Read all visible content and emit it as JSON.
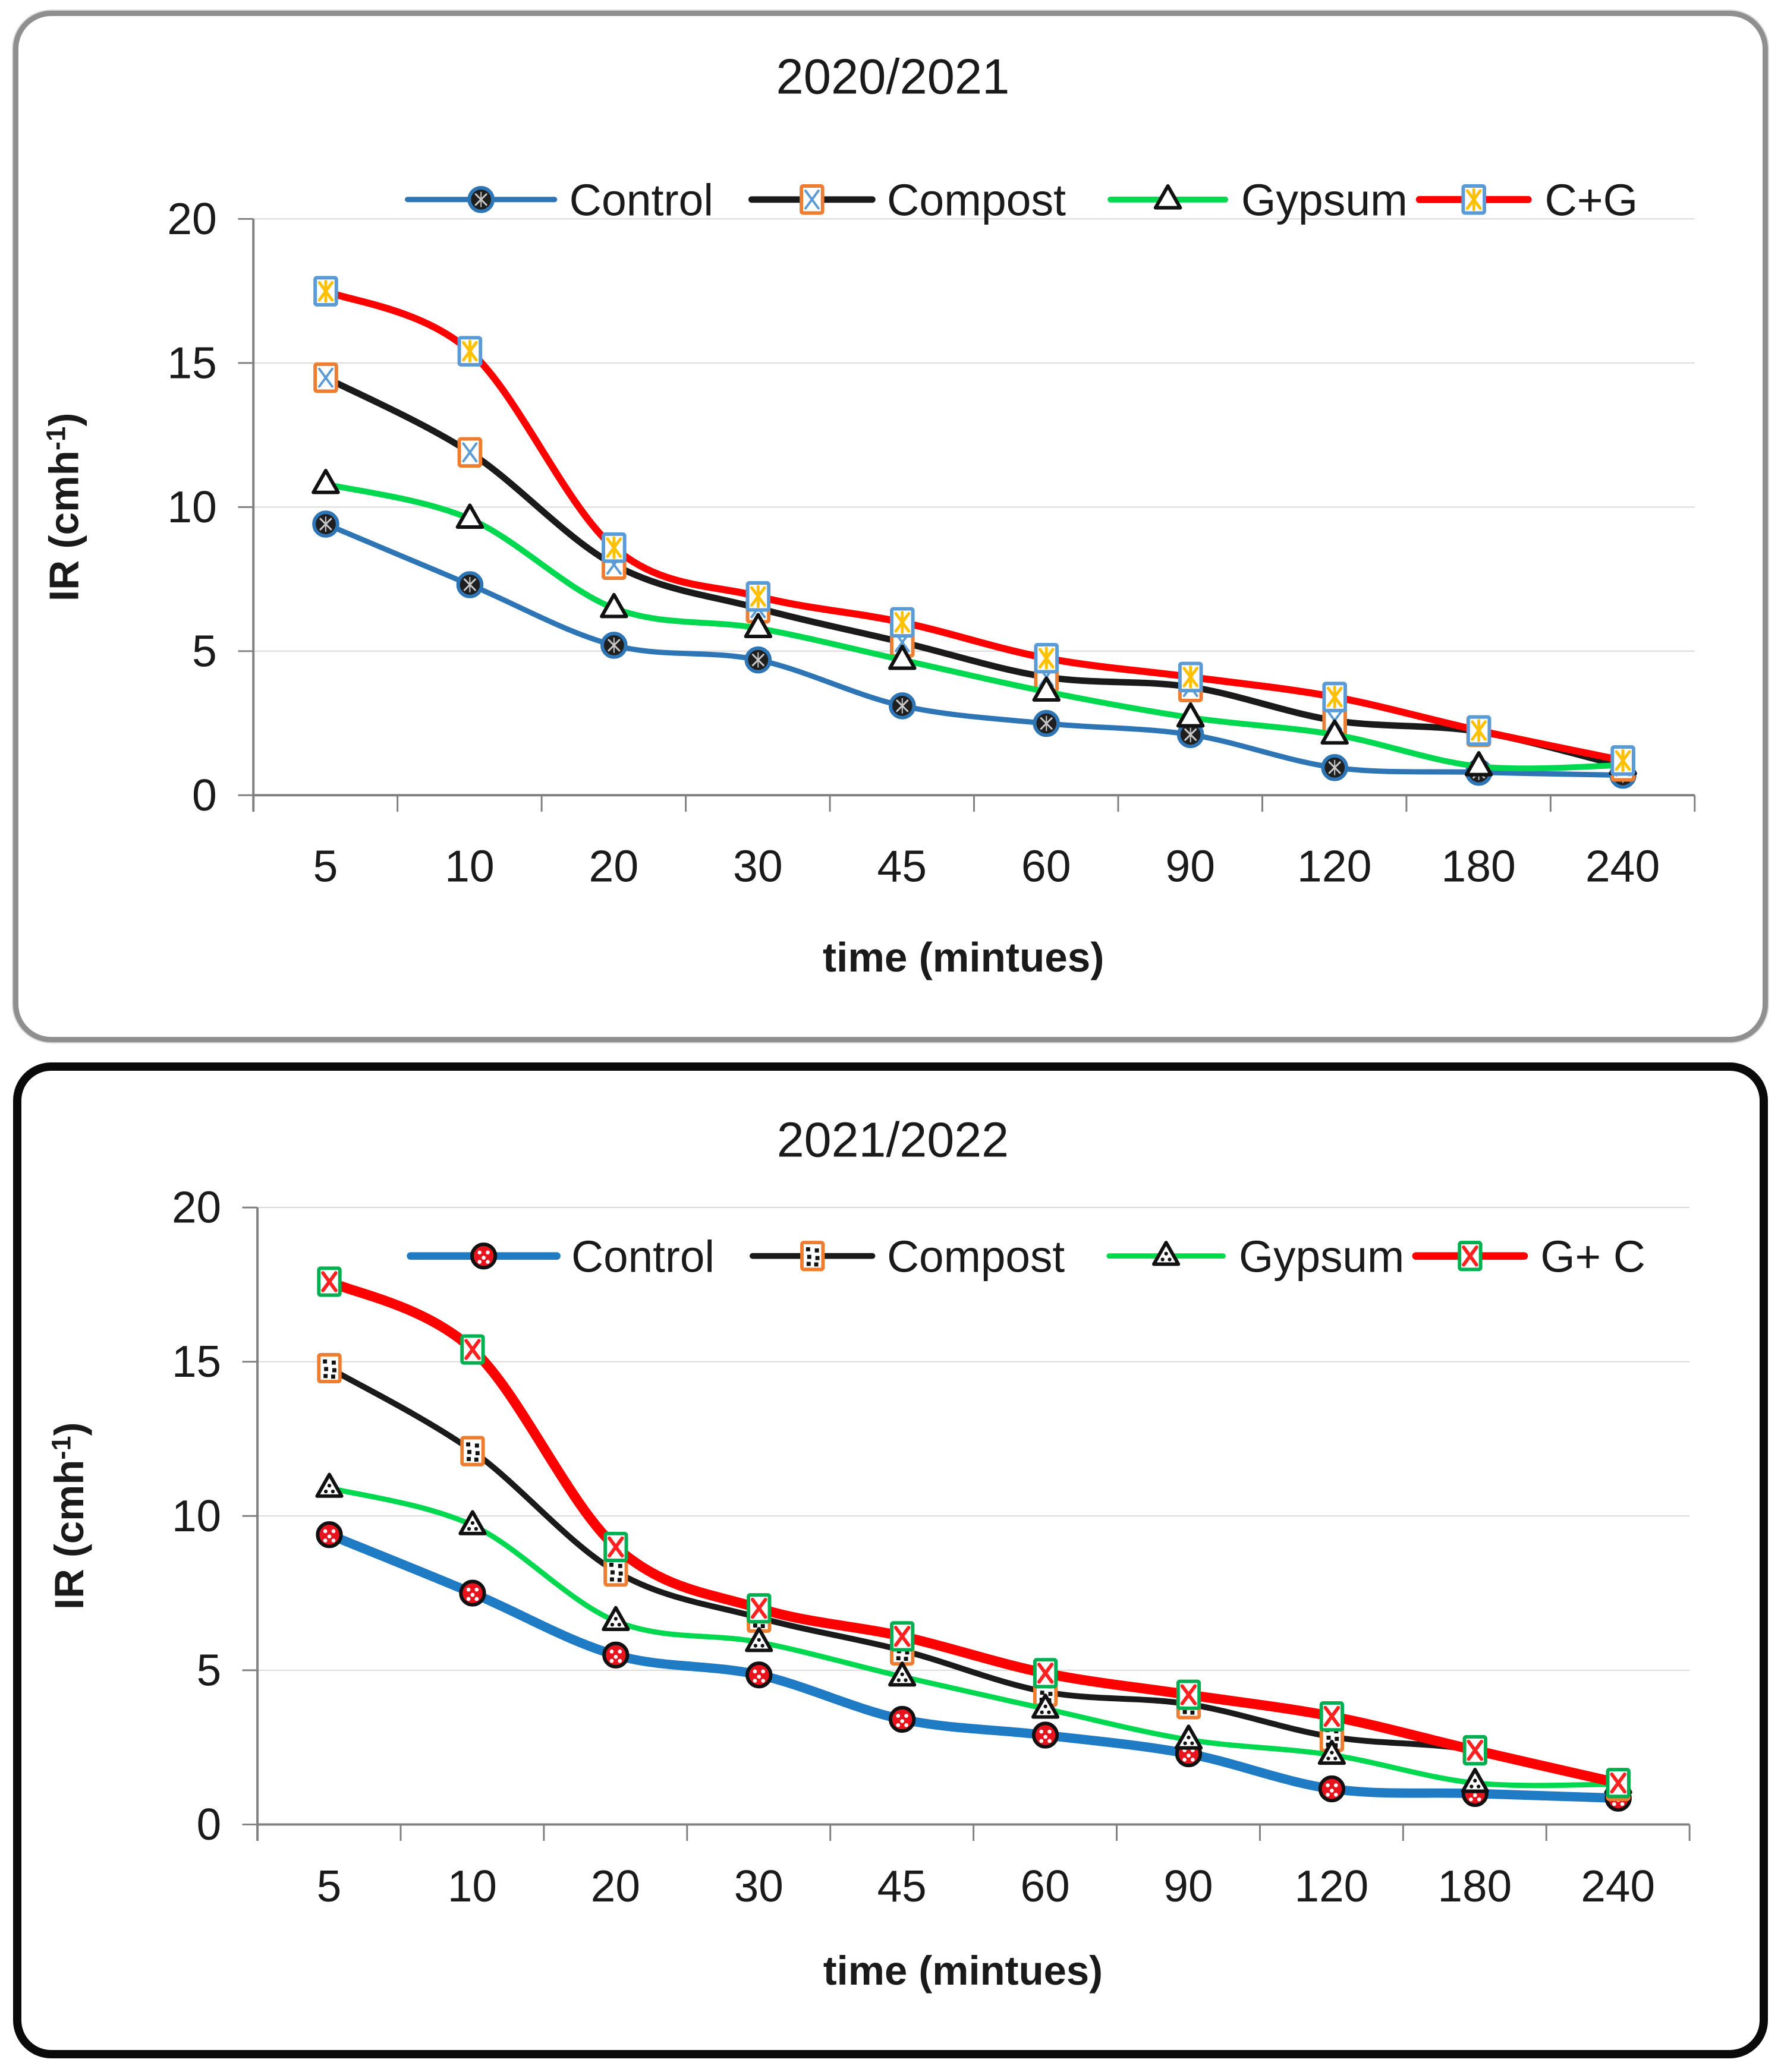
{
  "figure": {
    "background": "#ffffff",
    "top_panel_border_color": "#8f8f8f",
    "bottom_panel_border_color": "#0a0a0a"
  },
  "chart_data": [
    {
      "type": "line",
      "title": "2020/2021",
      "xlabel": "time (mintues)",
      "ylabel": {
        "main": "IR (cmh",
        "sup": "-1",
        "end": ")"
      },
      "ylim": [
        0,
        20
      ],
      "yticks": [
        0,
        5,
        10,
        15,
        20
      ],
      "categories": [
        "5",
        "10",
        "20",
        "30",
        "45",
        "60",
        "90",
        "120",
        "180",
        "240"
      ],
      "grid": true,
      "legend_position": "top-inside-horizontal",
      "axis_color": "#808080",
      "gridline_color": "#d9d9d9",
      "series": [
        {
          "name": "Control",
          "color": "#2E75B6",
          "line_width": 9,
          "marker": {
            "shape": "circle-hatch",
            "stroke": "#2E75B6",
            "fill": "#1f1f1f",
            "inner": "#c8c8c8"
          },
          "values": [
            9.4,
            7.3,
            5.2,
            4.7,
            3.1,
            2.5,
            2.1,
            0.95,
            0.8,
            0.7
          ]
        },
        {
          "name": "Compost",
          "color": "#1a1a1a",
          "line_width": 11,
          "marker": {
            "shape": "square-x",
            "stroke": "#ED7D31",
            "fill": "#ffffff",
            "inner": "#5B9BD5"
          },
          "values": [
            14.5,
            11.9,
            8.0,
            6.5,
            5.3,
            4.1,
            3.75,
            2.6,
            2.2,
            1.0
          ]
        },
        {
          "name": "Gypsum",
          "color": "#00D94F",
          "line_width": 10,
          "marker": {
            "shape": "triangle",
            "stroke": "#111111",
            "fill": "#ffffff",
            "inner": "#111111"
          },
          "values": [
            10.8,
            9.6,
            6.5,
            5.8,
            4.7,
            3.6,
            2.7,
            2.1,
            1.0,
            1.05
          ]
        },
        {
          "name": "C+G",
          "color": "#FF0000",
          "line_width": 12,
          "marker": {
            "shape": "square-star",
            "stroke": "#5B9BD5",
            "fill": "#ffffff",
            "inner": "#FFC000"
          },
          "values": [
            17.5,
            15.4,
            8.6,
            6.9,
            6.0,
            4.75,
            4.1,
            3.4,
            2.25,
            1.2
          ]
        }
      ]
    },
    {
      "type": "line",
      "title": "2021/2022",
      "xlabel": "time (mintues)",
      "ylabel": {
        "main": "IR (cmh",
        "sup": "-1",
        "end": ")"
      },
      "ylim": [
        0,
        20
      ],
      "yticks": [
        0,
        5,
        10,
        15,
        20
      ],
      "categories": [
        "5",
        "10",
        "20",
        "30",
        "45",
        "60",
        "90",
        "120",
        "180",
        "240"
      ],
      "grid": true,
      "legend_position": "top-inside-horizontal",
      "axis_color": "#808080",
      "gridline_color": "#d9d9d9",
      "series": [
        {
          "name": "Control",
          "color": "#1F7BC4",
          "line_width": 16,
          "marker": {
            "shape": "circle-dots",
            "stroke": "#111111",
            "fill": "#E8131D",
            "inner": "#ffffff"
          },
          "values": [
            9.4,
            7.5,
            5.5,
            4.85,
            3.4,
            2.9,
            2.3,
            1.15,
            1.0,
            0.85
          ]
        },
        {
          "name": "Compost",
          "color": "#1a1a1a",
          "line_width": 10,
          "marker": {
            "shape": "square-dots",
            "stroke": "#ED7D31",
            "fill": "#ffffff",
            "inner": "#111111"
          },
          "values": [
            14.8,
            12.1,
            8.2,
            6.7,
            5.65,
            4.3,
            3.9,
            2.85,
            2.4,
            1.25
          ]
        },
        {
          "name": "Gypsum",
          "color": "#00D94F",
          "line_width": 9,
          "marker": {
            "shape": "triangle-dots",
            "stroke": "#111111",
            "fill": "#ffffff",
            "inner": "#111111"
          },
          "values": [
            10.9,
            9.7,
            6.6,
            5.9,
            4.8,
            3.75,
            2.75,
            2.25,
            1.35,
            1.3
          ]
        },
        {
          "name": "G+ C",
          "color": "#FF0000",
          "line_width": 17,
          "marker": {
            "shape": "square-redx",
            "stroke": "#00B050",
            "fill": "#ffffff",
            "inner": "#FF2020"
          },
          "values": [
            17.6,
            15.4,
            9.0,
            7.0,
            6.1,
            4.9,
            4.2,
            3.5,
            2.4,
            1.35
          ]
        }
      ]
    }
  ]
}
